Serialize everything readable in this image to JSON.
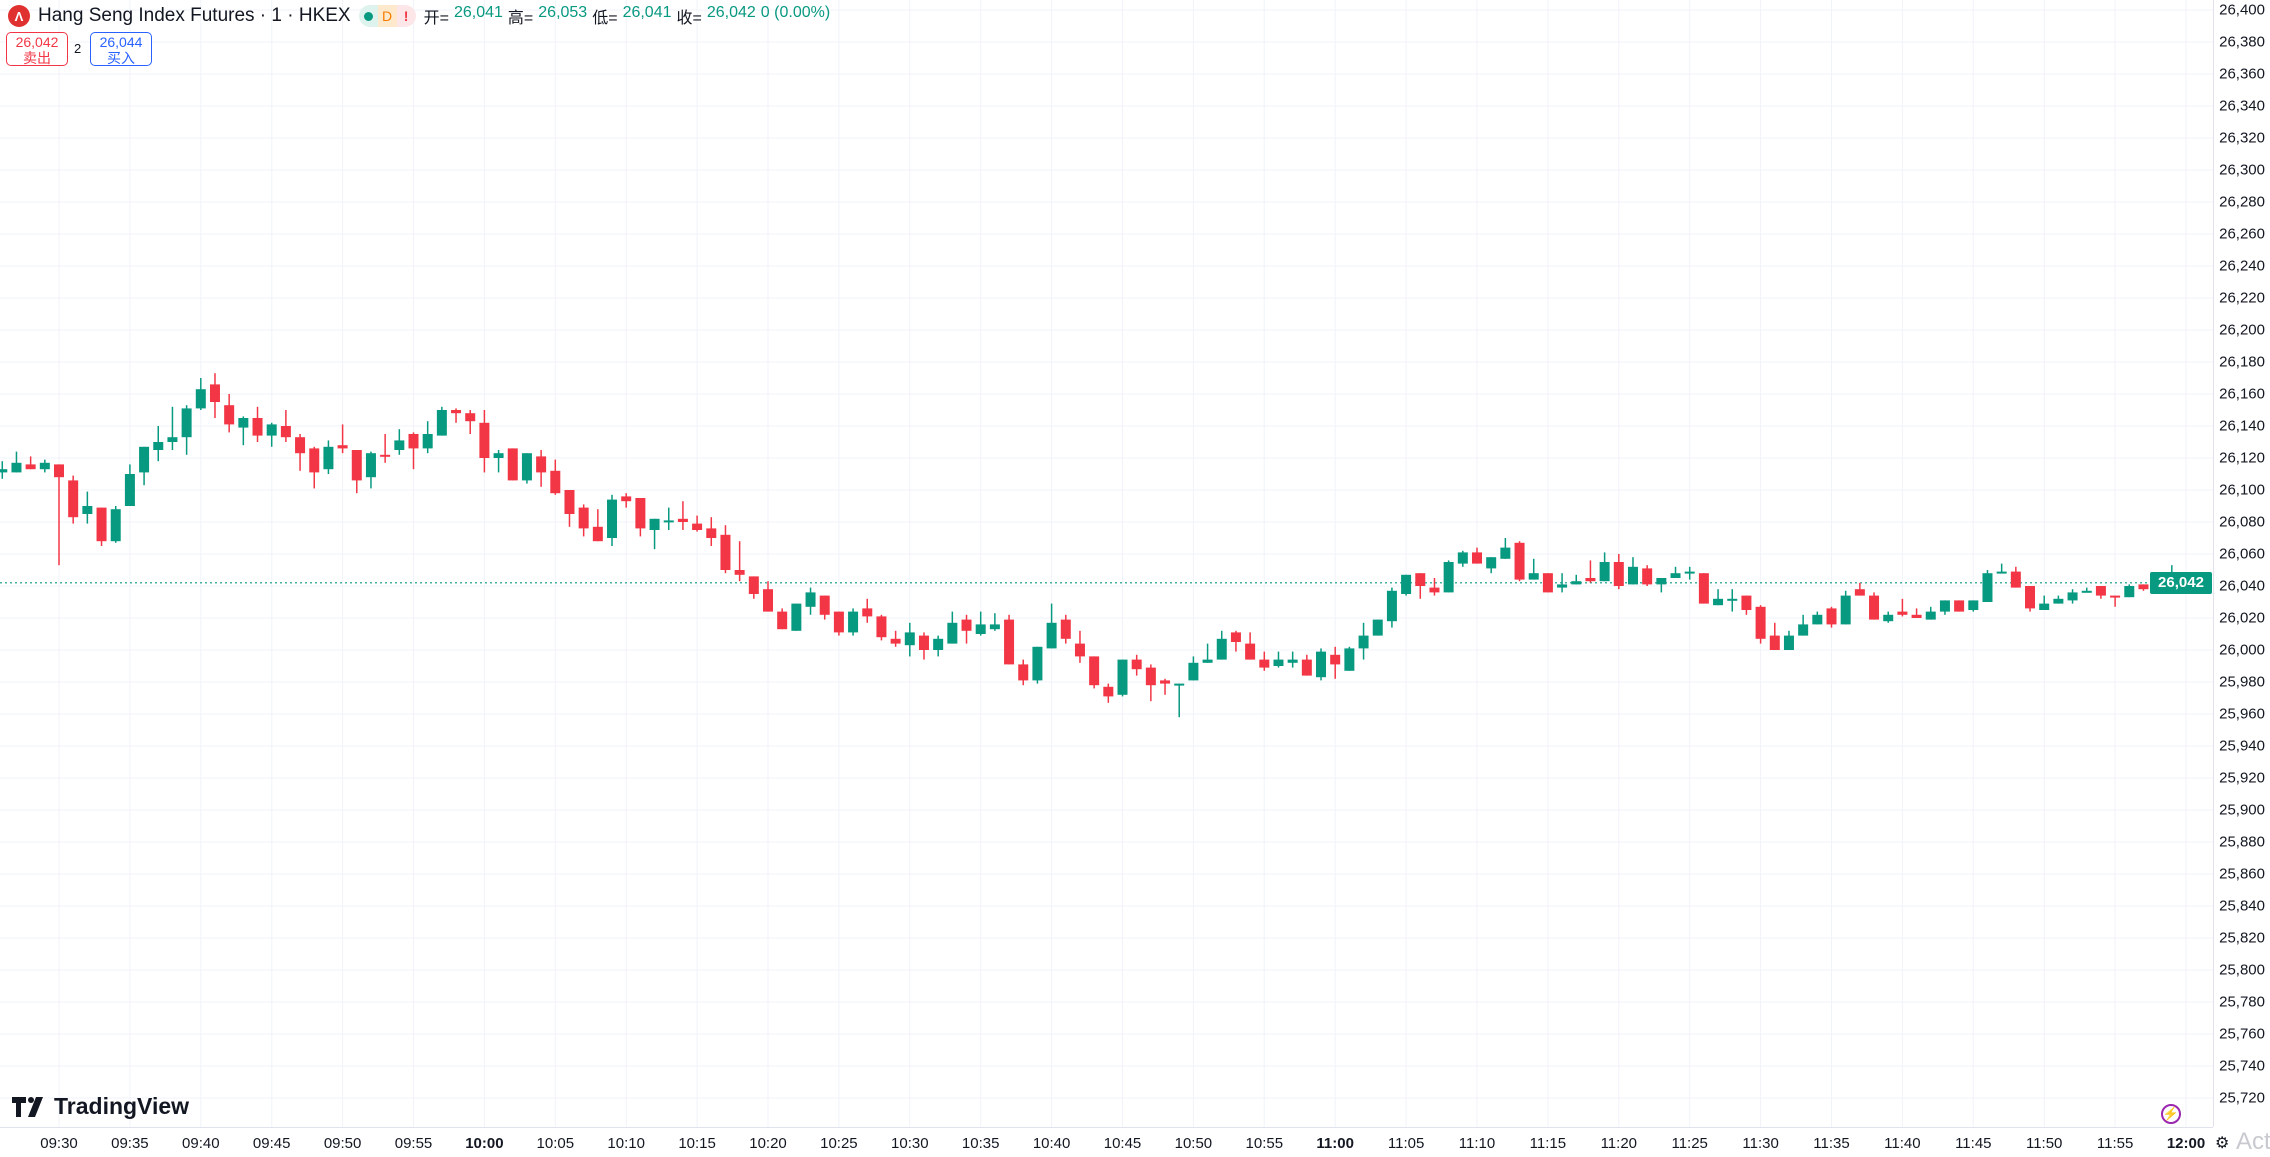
{
  "header": {
    "logo_text": "Λ",
    "title": "Hang Seng Index Futures · 1 · HKEX",
    "status_d": "D",
    "status_warn": "!",
    "open_label": "开=",
    "open": "26,041",
    "high_label": "高=",
    "high": "26,053",
    "low_label": "低=",
    "low": "26,041",
    "close_label": "收=",
    "close": "26,042",
    "change": "0 (0.00%)"
  },
  "trade": {
    "sell_price": "26,042",
    "sell_label": "卖出",
    "spread": "2",
    "buy_price": "26,044",
    "buy_label": "买入"
  },
  "branding": {
    "logo": "TradingView"
  },
  "footer": {
    "watermark": "Activa"
  },
  "colors": {
    "up": "#089981",
    "down": "#f23645",
    "grid": "#f0f3fa",
    "last_price": "#089981"
  },
  "chart_data": {
    "type": "candlestick",
    "title": "Hang Seng Index Futures · 1 · HKEX",
    "interval_minutes": 1,
    "start_time": "09:26",
    "ylim": [
      25710,
      26405
    ],
    "last_price": 26042,
    "last_price_label": "26,042",
    "y_ticks": [
      "26,400",
      "26,380",
      "26,360",
      "26,340",
      "26,320",
      "26,300",
      "26,280",
      "26,260",
      "26,240",
      "26,220",
      "26,200",
      "26,180",
      "26,160",
      "26,140",
      "26,120",
      "26,100",
      "26,080",
      "26,060",
      "26,040",
      "26,020",
      "26,000",
      "25,980",
      "25,960",
      "25,940",
      "25,920",
      "25,900",
      "25,880",
      "25,860",
      "25,840",
      "25,820",
      "25,800",
      "25,780",
      "25,760",
      "25,740",
      "25,720"
    ],
    "x_ticks": [
      "09:30",
      "09:35",
      "09:40",
      "09:45",
      "09:50",
      "09:55",
      "10:00",
      "10:05",
      "10:10",
      "10:15",
      "10:20",
      "10:25",
      "10:30",
      "10:35",
      "10:40",
      "10:45",
      "10:50",
      "10:55",
      "11:00",
      "11:05",
      "11:10",
      "11:15",
      "11:20",
      "11:25",
      "11:30",
      "11:35",
      "11:40",
      "11:45",
      "11:50",
      "11:55",
      "12:00"
    ],
    "x_ticks_bold": [
      "10:00",
      "11:00",
      "12:00"
    ],
    "ohlc_fields": [
      "open",
      "high",
      "low",
      "close"
    ],
    "candles": [
      [
        26111,
        26118,
        26107,
        26113
      ],
      [
        26111,
        26124,
        26111,
        26117
      ],
      [
        26116,
        26121,
        26113,
        26113
      ],
      [
        26113,
        26119,
        26111,
        26117
      ],
      [
        26116,
        26116,
        26053,
        26108
      ],
      [
        26106,
        26109,
        26079,
        26083
      ],
      [
        26085,
        26099,
        26079,
        26090
      ],
      [
        26089,
        26089,
        26065,
        26068
      ],
      [
        26068,
        26090,
        26067,
        26088
      ],
      [
        26090,
        26116,
        26090,
        26110
      ],
      [
        26111,
        26127,
        26103,
        26127
      ],
      [
        26125,
        26140,
        26118,
        26130
      ],
      [
        26130,
        26152,
        26125,
        26133
      ],
      [
        26133,
        26153,
        26122,
        26151
      ],
      [
        26151,
        26170,
        26150,
        26163
      ],
      [
        26166,
        26173,
        26145,
        26155
      ],
      [
        26153,
        26160,
        26136,
        26141
      ],
      [
        26139,
        26146,
        26128,
        26145
      ],
      [
        26145,
        26152,
        26130,
        26134
      ],
      [
        26134,
        26142,
        26127,
        26141
      ],
      [
        26140,
        26150,
        26130,
        26133
      ],
      [
        26133,
        26135,
        26112,
        26123
      ],
      [
        26126,
        26127,
        26101,
        26111
      ],
      [
        26113,
        26131,
        26110,
        26127
      ],
      [
        26128,
        26141,
        26123,
        26126
      ],
      [
        26125,
        26125,
        26098,
        26106
      ],
      [
        26108,
        26124,
        26101,
        26123
      ],
      [
        26122,
        26135,
        26117,
        26121
      ],
      [
        26125,
        26138,
        26122,
        26131
      ],
      [
        26135,
        26136,
        26113,
        26126
      ],
      [
        26126,
        26143,
        26123,
        26135
      ],
      [
        26134,
        26152,
        26134,
        26150
      ],
      [
        26150,
        26151,
        26142,
        26148
      ],
      [
        26148,
        26150,
        26135,
        26143
      ],
      [
        26142,
        26150,
        26111,
        26120
      ],
      [
        26120,
        26125,
        26111,
        26123
      ],
      [
        26126,
        26126,
        26106,
        26106
      ],
      [
        26106,
        26123,
        26104,
        26123
      ],
      [
        26121,
        26125,
        26102,
        26111
      ],
      [
        26112,
        26119,
        26097,
        26098
      ],
      [
        26100,
        26100,
        26077,
        26085
      ],
      [
        26089,
        26091,
        26071,
        26076
      ],
      [
        26077,
        26088,
        26068,
        26068
      ],
      [
        26070,
        26097,
        26065,
        26094
      ],
      [
        26096,
        26098,
        26089,
        26093
      ],
      [
        26095,
        26095,
        26071,
        26076
      ],
      [
        26075,
        26082,
        26063,
        26082
      ],
      [
        26080,
        26089,
        26075,
        26081
      ],
      [
        26082,
        26093,
        26075,
        26080
      ],
      [
        26079,
        26084,
        26074,
        26075
      ],
      [
        26076,
        26083,
        26065,
        26070
      ],
      [
        26072,
        26078,
        26048,
        26050
      ],
      [
        26050,
        26068,
        26043,
        26047
      ],
      [
        26046,
        26046,
        26032,
        26035
      ],
      [
        26038,
        26043,
        26024,
        26024
      ],
      [
        26024,
        26026,
        26013,
        26013
      ],
      [
        26012,
        26029,
        26012,
        26029
      ],
      [
        26027,
        26039,
        26022,
        26036
      ],
      [
        26034,
        26034,
        26019,
        26022
      ],
      [
        26024,
        26024,
        26009,
        26011
      ],
      [
        26011,
        26026,
        26009,
        26024
      ],
      [
        26026,
        26032,
        26017,
        26021
      ],
      [
        26021,
        26022,
        26006,
        26008
      ],
      [
        26007,
        26012,
        26002,
        26004
      ],
      [
        26003,
        26017,
        25996,
        26011
      ],
      [
        26009,
        26011,
        25994,
        26000
      ],
      [
        26000,
        26009,
        25996,
        26007
      ],
      [
        26004,
        26024,
        26004,
        26017
      ],
      [
        26019,
        26022,
        26004,
        26012
      ],
      [
        26010,
        26024,
        26009,
        26016
      ],
      [
        26013,
        26023,
        26012,
        26016
      ],
      [
        26019,
        26022,
        25991,
        25991
      ],
      [
        25991,
        25994,
        25978,
        25981
      ],
      [
        25981,
        26002,
        25979,
        26002
      ],
      [
        26001,
        26029,
        26001,
        26017
      ],
      [
        26019,
        26022,
        26004,
        26007
      ],
      [
        26004,
        26012,
        25992,
        25996
      ],
      [
        25996,
        25996,
        25976,
        25978
      ],
      [
        25977,
        25979,
        25967,
        25971
      ],
      [
        25972,
        25994,
        25971,
        25994
      ],
      [
        25994,
        25997,
        25984,
        25988
      ],
      [
        25989,
        25991,
        25968,
        25978
      ],
      [
        25981,
        25982,
        25972,
        25979
      ],
      [
        25978,
        25979,
        25958,
        25979
      ],
      [
        25981,
        25996,
        25981,
        25992
      ],
      [
        25992,
        26004,
        25992,
        25994
      ],
      [
        25994,
        26012,
        25994,
        26007
      ],
      [
        26011,
        26012,
        25999,
        26005
      ],
      [
        26004,
        26011,
        25994,
        25994
      ],
      [
        25994,
        25999,
        25987,
        25989
      ],
      [
        25990,
        25999,
        25989,
        25994
      ],
      [
        25992,
        25999,
        25989,
        25994
      ],
      [
        25994,
        25997,
        25984,
        25984
      ],
      [
        25983,
        26001,
        25981,
        25999
      ],
      [
        25997,
        26002,
        25982,
        25991
      ],
      [
        25987,
        26002,
        25987,
        26001
      ],
      [
        26001,
        26017,
        25994,
        26009
      ],
      [
        26009,
        26019,
        26009,
        26019
      ],
      [
        26018,
        26039,
        26014,
        26037
      ],
      [
        26035,
        26047,
        26034,
        26047
      ],
      [
        26048,
        26048,
        26032,
        26040
      ],
      [
        26039,
        26045,
        26034,
        26036
      ],
      [
        26036,
        26056,
        26036,
        26055
      ],
      [
        26054,
        26062,
        26052,
        26061
      ],
      [
        26061,
        26064,
        26054,
        26054
      ],
      [
        26051,
        26058,
        26048,
        26058
      ],
      [
        26057,
        26070,
        26057,
        26064
      ],
      [
        26067,
        26068,
        26043,
        26044
      ],
      [
        26044,
        26057,
        26044,
        26048
      ],
      [
        26048,
        26048,
        26036,
        26036
      ],
      [
        26039,
        26048,
        26036,
        26041
      ],
      [
        26041,
        26047,
        26041,
        26043
      ],
      [
        26045,
        26056,
        26042,
        26043
      ],
      [
        26043,
        26061,
        26043,
        26055
      ],
      [
        26055,
        26060,
        26038,
        26040
      ],
      [
        26041,
        26058,
        26041,
        26052
      ],
      [
        26051,
        26053,
        26040,
        26041
      ],
      [
        26041,
        26045,
        26036,
        26045
      ],
      [
        26045,
        26052,
        26045,
        26048
      ],
      [
        26048,
        26052,
        26044,
        26049
      ],
      [
        26048,
        26048,
        26029,
        26029
      ],
      [
        26028,
        26038,
        26028,
        26032
      ],
      [
        26032,
        26038,
        26024,
        26032
      ],
      [
        26034,
        26034,
        26022,
        26025
      ],
      [
        26027,
        26028,
        26004,
        26007
      ],
      [
        26009,
        26017,
        26000,
        26000
      ],
      [
        26000,
        26012,
        26000,
        26009
      ],
      [
        26009,
        26022,
        26009,
        26016
      ],
      [
        26016,
        26024,
        26016,
        26022
      ],
      [
        26026,
        26027,
        26014,
        26016
      ],
      [
        26016,
        26037,
        26016,
        26034
      ],
      [
        26038,
        26042,
        26034,
        26034
      ],
      [
        26034,
        26036,
        26019,
        26019
      ],
      [
        26018,
        26024,
        26017,
        26022
      ],
      [
        26024,
        26032,
        26021,
        26022
      ],
      [
        26022,
        26026,
        26020,
        26020
      ],
      [
        26019,
        26027,
        26019,
        26024
      ],
      [
        26024,
        26031,
        26022,
        26031
      ],
      [
        26031,
        26031,
        26024,
        26024
      ],
      [
        26025,
        26031,
        26024,
        26031
      ],
      [
        26030,
        26050,
        26030,
        26048
      ],
      [
        26048,
        26054,
        26048,
        26049
      ],
      [
        26049,
        26052,
        26039,
        26039
      ],
      [
        26040,
        26040,
        26024,
        26026
      ],
      [
        26025,
        26034,
        26025,
        26029
      ],
      [
        26029,
        26034,
        26029,
        26032
      ],
      [
        26031,
        26038,
        26029,
        26036
      ],
      [
        26036,
        26039,
        26036,
        26037
      ],
      [
        26040,
        26040,
        26032,
        26034
      ],
      [
        26034,
        26034,
        26027,
        26033
      ],
      [
        26033,
        26041,
        26033,
        26040
      ],
      [
        26041,
        26041,
        26037,
        26038
      ],
      [
        26038,
        26044,
        26038,
        26042
      ],
      [
        26041,
        26053,
        26041,
        26042
      ]
    ]
  }
}
